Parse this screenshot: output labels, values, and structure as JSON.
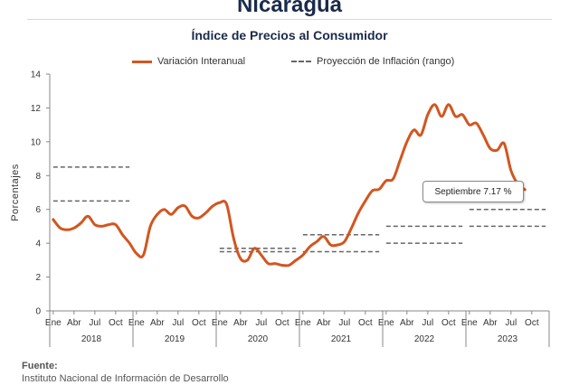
{
  "header": {
    "country": "Nicaragua",
    "title": "Índice de Precios al Consumidor"
  },
  "legend": {
    "series_label": "Variación Interanual",
    "projection_label": "Proyección de Inflación (rango)"
  },
  "callout": {
    "text": "Septiembre 7.17 %"
  },
  "source": {
    "label": "Fuente:",
    "text": "Instituto Nacional de Información de  Desarrollo"
  },
  "colors": {
    "series": "#d2561f",
    "projection": "#666666",
    "grid": "#d9d9d9"
  },
  "chart_data": {
    "type": "line",
    "title": "Índice de Precios al Consumidor",
    "ylabel": "Porcentajes",
    "ylim": [
      0,
      14
    ],
    "yticks": [
      0,
      2,
      4,
      6,
      8,
      10,
      12,
      14
    ],
    "grid": false,
    "legend_position": "top",
    "month_ticks": [
      "Ene",
      "Abr",
      "Jul",
      "Oct"
    ],
    "years": [
      "2018",
      "2019",
      "2020",
      "2021",
      "2022",
      "2023"
    ],
    "series": [
      {
        "name": "Variación Interanual",
        "start": "2018-01",
        "end": "2023-09",
        "values": [
          5.4,
          4.9,
          4.8,
          4.9,
          5.2,
          5.6,
          5.1,
          5.0,
          5.1,
          5.1,
          4.5,
          4.0,
          3.4,
          3.3,
          5.0,
          5.7,
          6.0,
          5.7,
          6.1,
          6.2,
          5.6,
          5.5,
          5.8,
          6.2,
          6.4,
          6.3,
          4.3,
          3.1,
          3.0,
          3.7,
          3.3,
          2.8,
          2.8,
          2.7,
          2.7,
          3.0,
          3.3,
          3.8,
          4.1,
          4.4,
          3.9,
          3.9,
          4.1,
          4.9,
          5.8,
          6.5,
          7.1,
          7.2,
          7.7,
          7.8,
          8.9,
          10.0,
          10.7,
          10.4,
          11.6,
          12.2,
          11.5,
          12.2,
          11.5,
          11.6,
          11.0,
          11.1,
          10.4,
          9.6,
          9.5,
          9.9,
          8.3,
          7.5,
          7.17
        ]
      }
    ],
    "projections": [
      {
        "from": "2018-01",
        "to": "2018-12",
        "low": 6.5,
        "high": 8.5
      },
      {
        "from": "2020-01",
        "to": "2020-12",
        "low": 3.5,
        "high": 3.7
      },
      {
        "from": "2021-01",
        "to": "2021-12",
        "low": 3.5,
        "high": 4.5
      },
      {
        "from": "2022-01",
        "to": "2022-12",
        "low": 4.0,
        "high": 5.0
      },
      {
        "from": "2023-01",
        "to": "2023-12",
        "low": 5.0,
        "high": 6.0
      }
    ]
  }
}
